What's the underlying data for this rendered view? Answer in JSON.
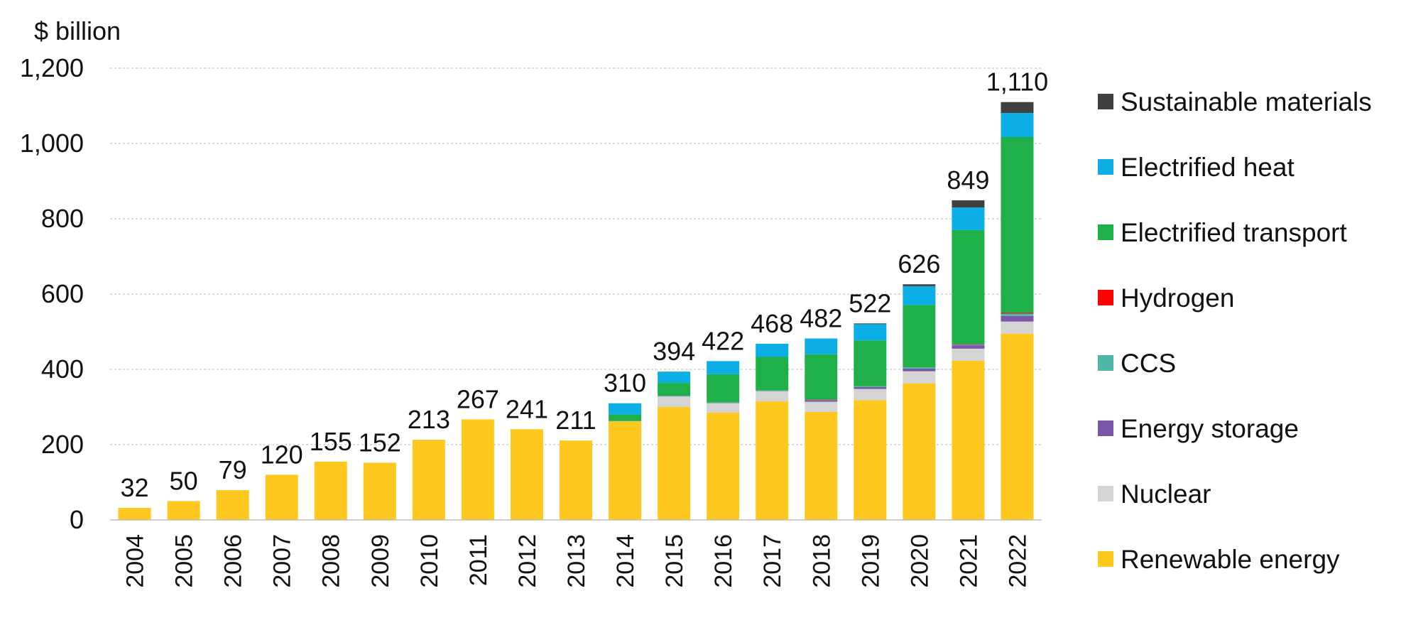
{
  "chart_data": {
    "type": "bar",
    "stacked": true,
    "ylabel": "$ billion",
    "ylim": [
      0,
      1200
    ],
    "yticks": [
      0,
      200,
      400,
      600,
      800,
      1000,
      1200
    ],
    "ytick_labels": [
      "0",
      "200",
      "400",
      "600",
      "800",
      "1,000",
      "1,200"
    ],
    "grid": true,
    "legend_position": "right",
    "categories": [
      "2004",
      "2005",
      "2006",
      "2007",
      "2008",
      "2009",
      "2010",
      "2011",
      "2012",
      "2013",
      "2014",
      "2015",
      "2016",
      "2017",
      "2018",
      "2019",
      "2020",
      "2021",
      "2022"
    ],
    "series": [
      {
        "name": "Renewable energy",
        "color": "#FFC81E",
        "values": [
          32,
          50,
          79,
          120,
          155,
          152,
          213,
          267,
          241,
          211,
          262,
          300,
          285,
          315,
          287,
          318,
          363,
          423,
          495
        ]
      },
      {
        "name": "Nuclear",
        "color": "#D4D4D4",
        "values": [
          0,
          0,
          0,
          0,
          0,
          0,
          0,
          0,
          0,
          0,
          0,
          28,
          25,
          27,
          27,
          30,
          32,
          32,
          32
        ]
      },
      {
        "name": "Energy storage",
        "color": "#7B56A8",
        "values": [
          0,
          0,
          0,
          0,
          0,
          0,
          0,
          0,
          0,
          0,
          0,
          1,
          1,
          1,
          4,
          5,
          7,
          9,
          15
        ]
      },
      {
        "name": "CCS",
        "color": "#4DB8A6",
        "values": [
          0,
          0,
          0,
          0,
          0,
          0,
          0,
          0,
          0,
          0,
          1,
          1,
          1,
          1,
          1,
          2,
          3,
          3,
          6
        ]
      },
      {
        "name": "Hydrogen",
        "color": "#FF0000",
        "values": [
          0,
          0,
          0,
          0,
          0,
          0,
          0,
          0,
          0,
          0,
          0,
          0,
          0,
          0,
          1,
          0,
          0,
          1,
          2
        ]
      },
      {
        "name": "Electrified transport",
        "color": "#1FB04A",
        "values": [
          0,
          0,
          0,
          0,
          0,
          0,
          0,
          0,
          0,
          0,
          17,
          34,
          75,
          89,
          120,
          122,
          166,
          302,
          467
        ]
      },
      {
        "name": "Electrified heat",
        "color": "#0CAEE6",
        "values": [
          0,
          0,
          0,
          0,
          0,
          0,
          0,
          0,
          0,
          0,
          30,
          30,
          35,
          35,
          42,
          43,
          50,
          60,
          64
        ]
      },
      {
        "name": "Sustainable materials",
        "color": "#404040",
        "values": [
          0,
          0,
          0,
          0,
          0,
          0,
          0,
          0,
          0,
          0,
          0,
          0,
          0,
          0,
          0,
          2,
          5,
          19,
          29
        ]
      }
    ],
    "totals": [
      32,
      50,
      79,
      120,
      155,
      152,
      213,
      267,
      241,
      211,
      310,
      394,
      422,
      468,
      482,
      522,
      626,
      849,
      1110
    ],
    "total_labels": [
      "32",
      "50",
      "79",
      "120",
      "155",
      "152",
      "213",
      "267",
      "241",
      "211",
      "310",
      "394",
      "422",
      "468",
      "482",
      "522",
      "626",
      "849",
      "1,110"
    ],
    "legend_order": [
      "Sustainable materials",
      "Electrified heat",
      "Electrified transport",
      "Hydrogen",
      "CCS",
      "Energy storage",
      "Nuclear",
      "Renewable energy"
    ]
  }
}
